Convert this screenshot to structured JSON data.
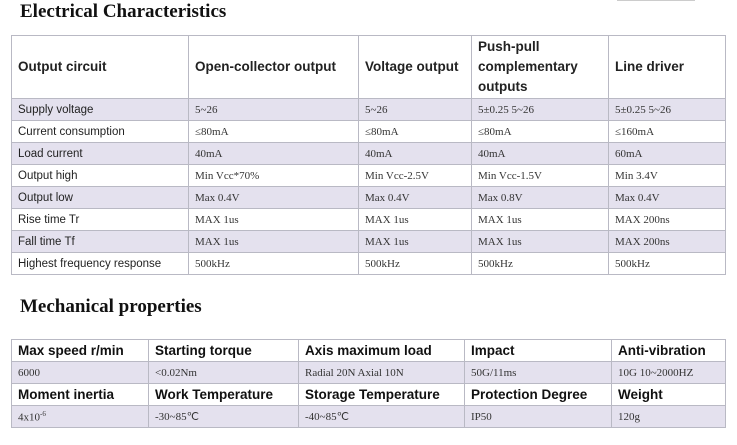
{
  "electrical": {
    "title": "Electrical Characteristics",
    "headers": [
      "Output circuit",
      "Open-collector output",
      "Voltage output",
      "Push-pull complementary outputs",
      "Line driver"
    ],
    "rows": [
      {
        "label": "Supply voltage",
        "values": [
          "5~26",
          "5~26",
          "5±0.25  5~26",
          "5±0.25  5~26"
        ]
      },
      {
        "label": "Current consumption",
        "values": [
          "≤80mA",
          "≤80mA",
          "≤80mA",
          "≤160mA"
        ]
      },
      {
        "label": "Load current",
        "values": [
          "40mA",
          "40mA",
          "40mA",
          "60mA"
        ]
      },
      {
        "label": "Output high",
        "values": [
          "Min Vcc*70%",
          "Min Vcc-2.5V",
          "Min Vcc-1.5V",
          "Min 3.4V"
        ]
      },
      {
        "label": "Output low",
        "values": [
          "Max 0.4V",
          "Max 0.4V",
          "Max 0.8V",
          "Max 0.4V"
        ]
      },
      {
        "label": "Rise time Tr",
        "values": [
          "MAX 1us",
          "MAX 1us",
          "MAX 1us",
          "MAX 200ns"
        ]
      },
      {
        "label": "Fall time Tf",
        "values": [
          "MAX 1us",
          "MAX 1us",
          "MAX 1us",
          "MAX 200ns"
        ]
      },
      {
        "label": "Highest frequency response",
        "values": [
          "500kHz",
          "500kHz",
          "500kHz",
          "500kHz"
        ]
      }
    ]
  },
  "mechanical": {
    "title": "Mechanical properties",
    "row1_headers": [
      "Max speed r/min",
      "Starting torque",
      "Axis maximum load",
      "Impact",
      "Anti-vibration"
    ],
    "row1_values": [
      "6000",
      "<0.02Nm",
      "Radial 20N  Axial 10N",
      "50G/11ms",
      "10G 10~2000HZ"
    ],
    "row2_headers": [
      "Moment inertia",
      "Work Temperature",
      "Storage Temperature",
      "Protection Degree",
      "Weight"
    ],
    "row2_values": [
      "4x10",
      "-30~85℃",
      "-40~85℃",
      "IP50",
      "120g"
    ],
    "inertia_exponent": "-6"
  }
}
